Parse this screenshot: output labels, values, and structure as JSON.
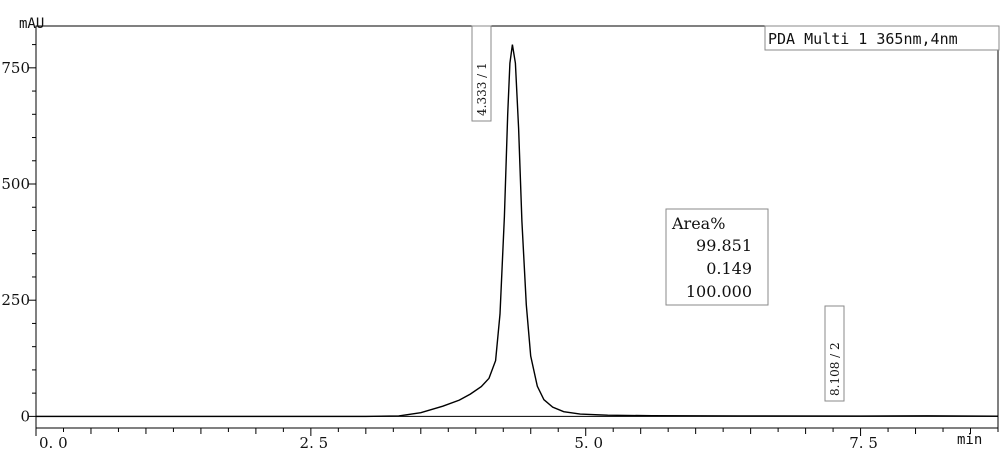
{
  "chart_data": {
    "type": "line",
    "title": "",
    "xlabel": "min",
    "ylabel": "mAU",
    "legend": "PDA Multi 1 365nm,4nm",
    "xlim": [
      0,
      8.75
    ],
    "ylim": [
      -25,
      840
    ],
    "x_ticks": [
      "0.0",
      "2.5",
      "5.0",
      "7.5"
    ],
    "y_ticks": [
      "0",
      "250",
      "500",
      "750"
    ],
    "grid": false,
    "series": [
      {
        "name": "PDA Multi 1 365nm,4nm",
        "points": [
          [
            0.0,
            0
          ],
          [
            1.0,
            0
          ],
          [
            2.0,
            0
          ],
          [
            3.0,
            0
          ],
          [
            3.3,
            1
          ],
          [
            3.5,
            8
          ],
          [
            3.7,
            22
          ],
          [
            3.85,
            35
          ],
          [
            3.95,
            48
          ],
          [
            4.05,
            64
          ],
          [
            4.12,
            82
          ],
          [
            4.18,
            120
          ],
          [
            4.22,
            220
          ],
          [
            4.26,
            430
          ],
          [
            4.29,
            650
          ],
          [
            4.31,
            760
          ],
          [
            4.333,
            800
          ],
          [
            4.36,
            760
          ],
          [
            4.39,
            620
          ],
          [
            4.42,
            420
          ],
          [
            4.46,
            240
          ],
          [
            4.5,
            130
          ],
          [
            4.56,
            65
          ],
          [
            4.62,
            36
          ],
          [
            4.7,
            20
          ],
          [
            4.8,
            10
          ],
          [
            4.95,
            5
          ],
          [
            5.2,
            2.5
          ],
          [
            5.6,
            1.5
          ],
          [
            6.4,
            1
          ],
          [
            7.5,
            0.5
          ],
          [
            8.108,
            1.2
          ],
          [
            8.75,
            0.3
          ]
        ]
      }
    ],
    "peaks": [
      {
        "label": "4.333 / 1",
        "x": 4.333,
        "y": 800
      },
      {
        "label": "8.108 / 2",
        "x": 8.108,
        "y": 1.2
      }
    ],
    "area_table": {
      "header": "Area%",
      "values": [
        "99.851",
        "0.149",
        "100.000"
      ]
    }
  }
}
